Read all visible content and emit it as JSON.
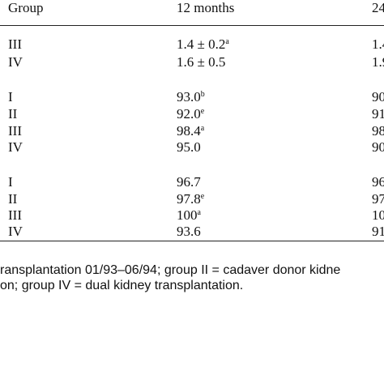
{
  "table": {
    "headers": [
      "Group",
      "12 months",
      "24"
    ],
    "sections": [
      {
        "rows": [
          {
            "group": "III",
            "m12": "1.4 ± 0.2",
            "m12_sup": "a",
            "m24": "1.4"
          },
          {
            "group": "IV",
            "m12": "1.6 ± 0.5",
            "m12_sup": "",
            "m24": "1.9"
          }
        ]
      },
      {
        "rows": [
          {
            "group": "I",
            "m12": "93.0",
            "m12_sup": "b",
            "m24": "90"
          },
          {
            "group": "II",
            "m12": "92.0",
            "m12_sup": "e",
            "m24": "91"
          },
          {
            "group": "III",
            "m12": "98.4",
            "m12_sup": "a",
            "m24": "98"
          },
          {
            "group": "IV",
            "m12": "95.0",
            "m12_sup": "",
            "m24": "90"
          }
        ]
      },
      {
        "rows": [
          {
            "group": "I",
            "m12": "96.7",
            "m12_sup": "",
            "m24": "96"
          },
          {
            "group": "II",
            "m12": "97.8",
            "m12_sup": "e",
            "m24": "97"
          },
          {
            "group": "III",
            "m12": "100",
            "m12_sup": "a",
            "m24": "10"
          },
          {
            "group": "IV",
            "m12": "93.6",
            "m12_sup": "",
            "m24": "91"
          }
        ]
      }
    ]
  },
  "footnote": {
    "line1": "ransplantation 01/93–06/94; group II = cadaver donor kidne",
    "line2": "on; group IV = dual kidney transplantation."
  }
}
